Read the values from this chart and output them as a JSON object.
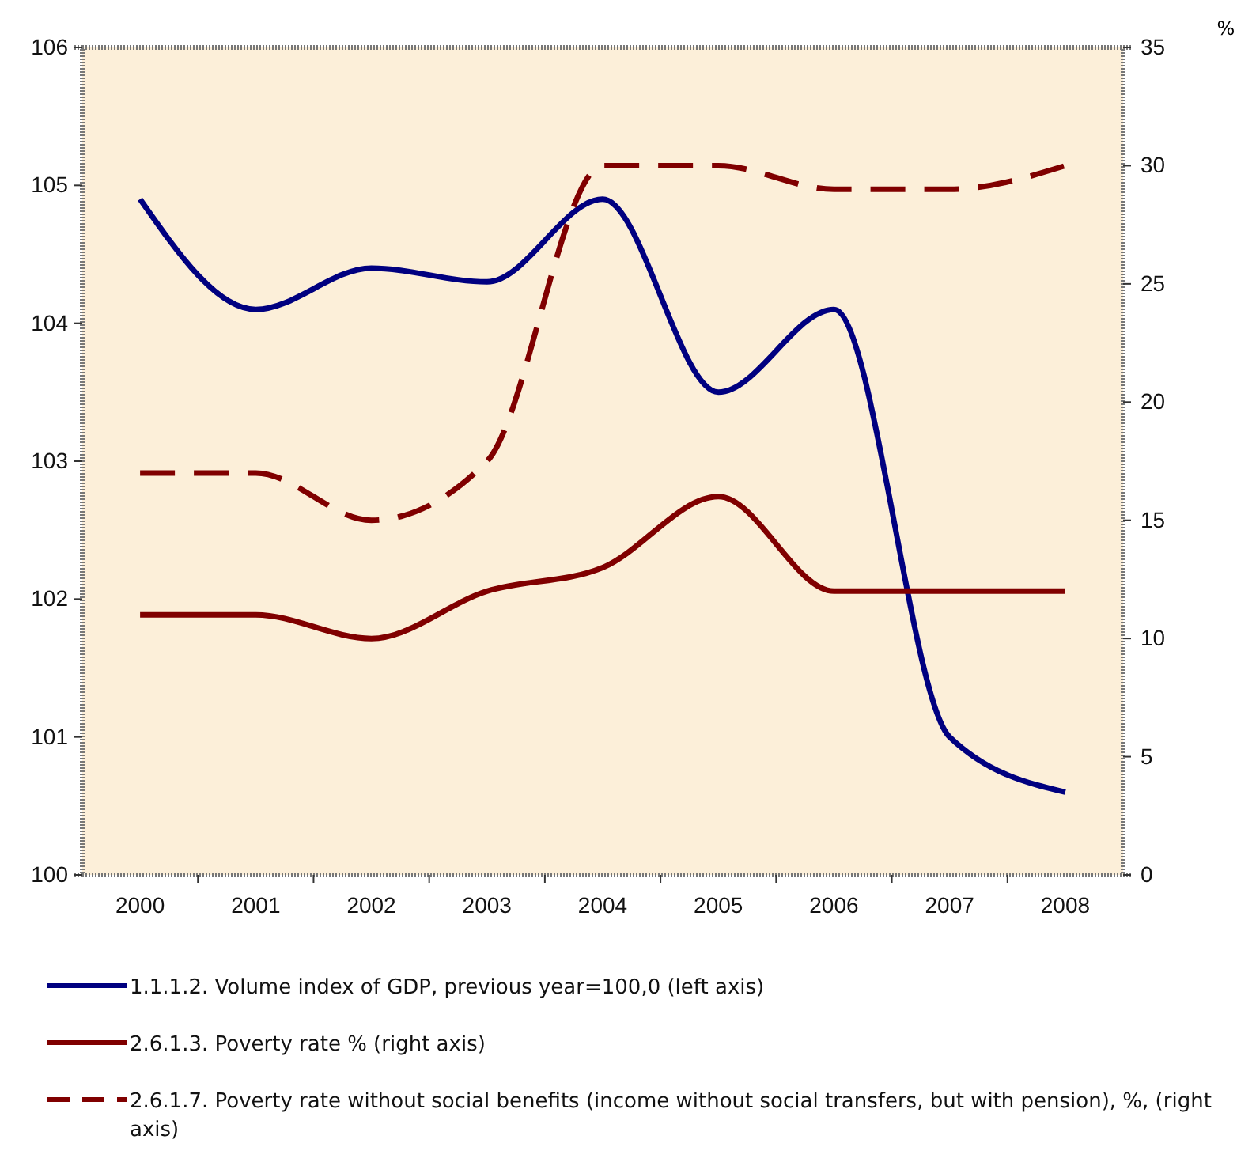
{
  "chart_data": {
    "type": "line",
    "categories": [
      "2000",
      "2001",
      "2002",
      "2003",
      "2004",
      "2005",
      "2006",
      "2007",
      "2008"
    ],
    "series": [
      {
        "name": "1.1.1.2. Volume index of GDP, previous year=100,0 (left axis)",
        "color": "#000080",
        "line_style": "solid",
        "values": [
          104.9,
          104.1,
          104.4,
          104.3,
          104.9,
          103.5,
          104.1,
          101.0,
          100.6
        ]
      },
      {
        "name": "2.6.1.3. Poverty rate % (right axis)",
        "color": "#800000",
        "axis": "y2",
        "line_style": "solid",
        "values": [
          11,
          11,
          10,
          12,
          13,
          16,
          12,
          12,
          12
        ]
      },
      {
        "name": "2.6.1.7. Poverty rate without social benefits (income without social transfers, but with pension), %, (right axis)",
        "color": "#800000",
        "axis": "y2",
        "line_style": "dashed",
        "values": [
          17,
          17,
          15,
          17.5,
          30,
          30,
          29,
          29,
          30
        ]
      }
    ],
    "ylim": [
      100,
      106
    ],
    "yticks": [
      100,
      101,
      102,
      103,
      104,
      105,
      106
    ],
    "y2lim": [
      0,
      35
    ],
    "y2ticks": [
      0,
      5,
      10,
      15,
      20,
      25,
      30,
      35
    ],
    "y2label": "%",
    "grid": false,
    "legend": "bottom",
    "marker": "none"
  }
}
